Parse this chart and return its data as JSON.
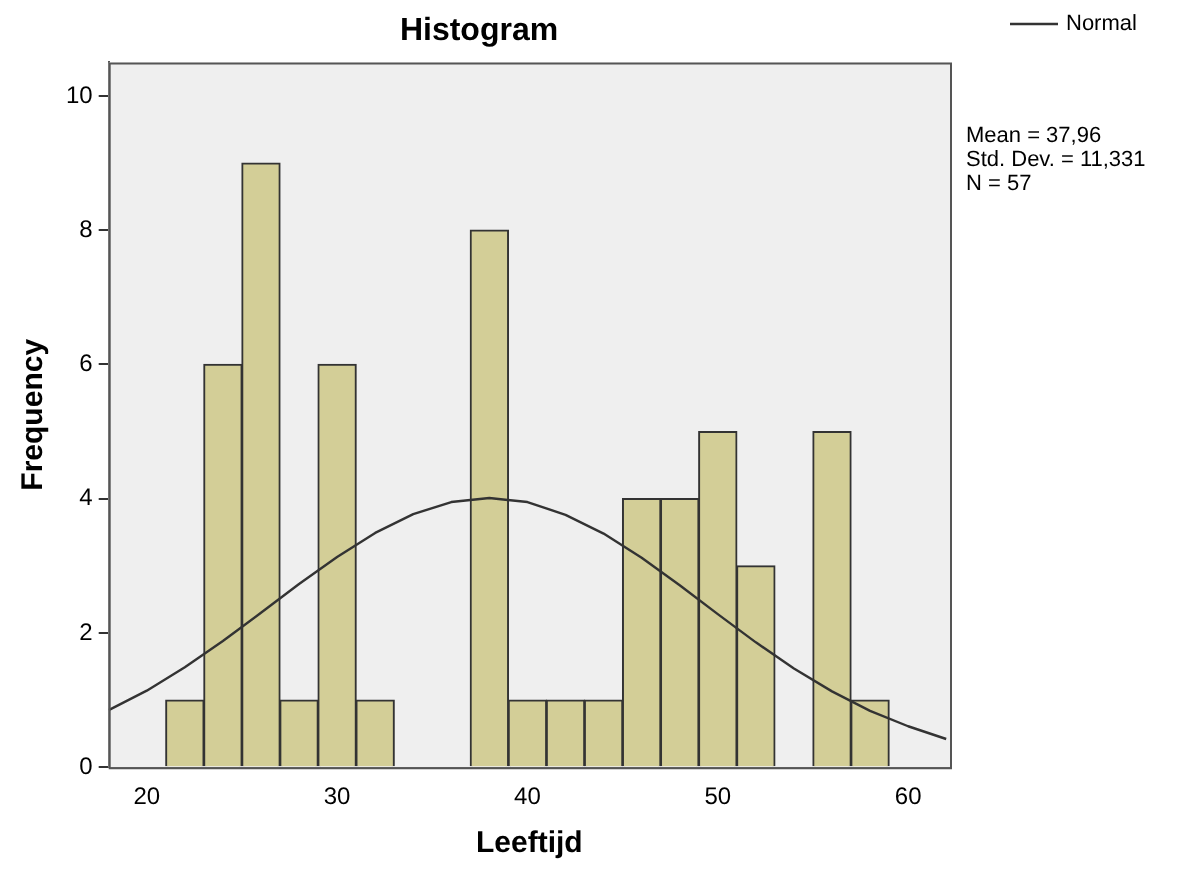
{
  "chart_data": {
    "type": "histogram",
    "title": "Histogram",
    "xlabel": "Leeftijd",
    "ylabel": "Frequency",
    "bins": [
      21,
      23,
      25,
      27,
      29,
      31,
      33,
      35,
      37,
      39,
      41,
      43,
      45,
      47,
      49,
      51,
      53,
      55,
      57,
      59
    ],
    "values": [
      1,
      6,
      9,
      1,
      6,
      1,
      0,
      0,
      8,
      1,
      1,
      1,
      4,
      4,
      5,
      3,
      0,
      5,
      1
    ],
    "color": "#d3ce97",
    "series": [
      {
        "name": "Normal",
        "type": "line",
        "color": "#333333",
        "x": [
          18,
          20,
          22,
          24,
          26,
          28,
          30,
          32,
          34,
          36,
          38,
          40,
          42,
          44,
          46,
          48,
          50,
          52,
          54,
          56,
          58,
          60,
          62
        ],
        "values": [
          0.85,
          1.14,
          1.49,
          1.88,
          2.3,
          2.73,
          3.13,
          3.49,
          3.77,
          3.95,
          4.01,
          3.95,
          3.76,
          3.48,
          3.12,
          2.71,
          2.28,
          1.86,
          1.47,
          1.13,
          0.84,
          0.61,
          0.42
        ]
      }
    ],
    "xlim": [
      18,
      62.2
    ],
    "xticks": [
      20,
      30,
      40,
      50,
      60
    ],
    "ylim": [
      0,
      10.5
    ],
    "yticks": [
      0,
      2,
      4,
      6,
      8,
      10
    ],
    "grid": false,
    "legend": "top right",
    "marker": "none",
    "line_style": "solid",
    "annotations": [
      "Mean = 37,96",
      "Std. Dev. = 11,331",
      "N = 57"
    ]
  }
}
